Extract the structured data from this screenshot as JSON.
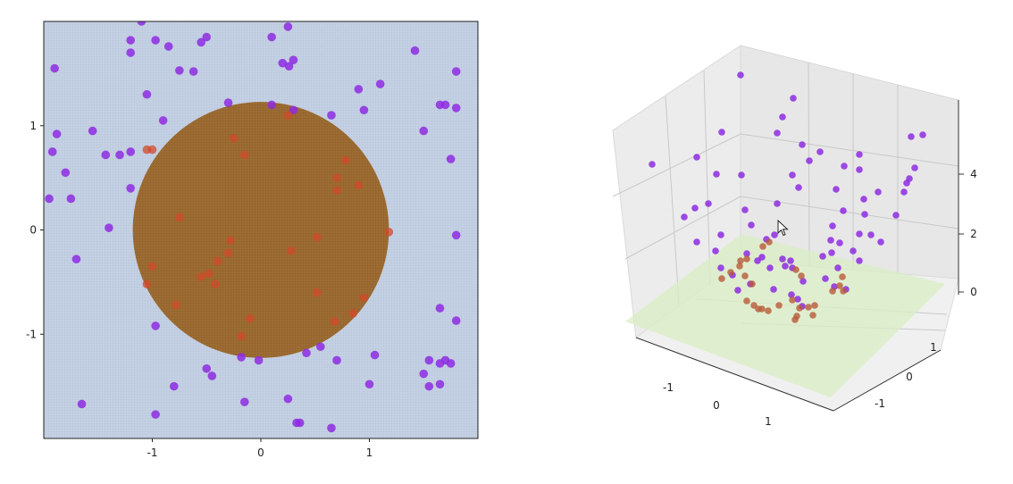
{
  "chart_data": [
    {
      "type": "scatter",
      "title": "",
      "xlabel": "",
      "ylabel": "",
      "xlim": [
        -2,
        2
      ],
      "ylim": [
        -2,
        2
      ],
      "xticks": [
        "-1",
        "0",
        "1"
      ],
      "yticks": [
        "-1",
        "0",
        "1"
      ],
      "xtick_values": [
        -1,
        0,
        1
      ],
      "ytick_values": [
        -1,
        0,
        1
      ],
      "grid": false,
      "decision_region": {
        "shape": "circle",
        "center": [
          0,
          0
        ],
        "radius": 1.18,
        "inside_color": "#9a6a30",
        "outside_color": "#c3cfe2"
      },
      "classes": [
        {
          "color": "#8e2be2",
          "points": [
            [
              -1.1,
              2
            ],
            [
              -1.2,
              1.82
            ],
            [
              -1.2,
              1.7
            ],
            [
              -0.97,
              1.82
            ],
            [
              -0.85,
              1.76
            ],
            [
              -0.75,
              1.53
            ],
            [
              -0.62,
              1.52
            ],
            [
              -0.55,
              1.8
            ],
            [
              -0.5,
              1.85
            ],
            [
              0.1,
              1.85
            ],
            [
              0.25,
              1.95
            ],
            [
              0.2,
              1.6
            ],
            [
              0.26,
              1.57
            ],
            [
              0.3,
              1.63
            ],
            [
              0.1,
              1.2
            ],
            [
              0.65,
              1.1
            ],
            [
              0.9,
              1.35
            ],
            [
              0.95,
              1.15
            ],
            [
              1.1,
              1.4
            ],
            [
              1.42,
              1.72
            ],
            [
              1.5,
              0.95
            ],
            [
              1.65,
              1.2
            ],
            [
              1.7,
              1.2
            ],
            [
              1.8,
              1.52
            ],
            [
              1.8,
              1.17
            ],
            [
              1.75,
              0.68
            ],
            [
              1.8,
              -0.05
            ],
            [
              1.65,
              -0.75
            ],
            [
              1.8,
              -0.87
            ],
            [
              1.7,
              -1.25
            ],
            [
              1.55,
              -1.25
            ],
            [
              1.65,
              -1.28
            ],
            [
              1.75,
              -1.28
            ],
            [
              1.5,
              -1.38
            ],
            [
              1.55,
              -1.5
            ],
            [
              1.65,
              -1.48
            ],
            [
              1.05,
              -1.2
            ],
            [
              1.0,
              -1.48
            ],
            [
              0.7,
              -1.25
            ],
            [
              0.55,
              -1.12
            ],
            [
              0.42,
              -1.18
            ],
            [
              0.25,
              -1.62
            ],
            [
              0.33,
              -1.85
            ],
            [
              0.36,
              -1.85
            ],
            [
              0.65,
              -1.9
            ],
            [
              -0.02,
              -1.25
            ],
            [
              -0.15,
              -1.65
            ],
            [
              -0.18,
              -1.22
            ],
            [
              -0.5,
              -1.33
            ],
            [
              -0.45,
              -1.4
            ],
            [
              -0.8,
              -1.5
            ],
            [
              -0.97,
              -0.92
            ],
            [
              -0.97,
              -1.77
            ],
            [
              -1.65,
              -1.67
            ],
            [
              -1.88,
              0.92
            ],
            [
              -1.95,
              0.3
            ],
            [
              -1.75,
              0.3
            ],
            [
              -1.8,
              0.55
            ],
            [
              -1.92,
              0.75
            ],
            [
              -1.9,
              1.55
            ],
            [
              -1.43,
              0.72
            ],
            [
              -1.55,
              0.95
            ],
            [
              -1.3,
              0.72
            ],
            [
              -1.2,
              0.75
            ],
            [
              -1.2,
              0.4
            ],
            [
              -1.4,
              0.02
            ],
            [
              -1.7,
              -0.28
            ],
            [
              -0.9,
              1.05
            ],
            [
              -1.05,
              1.3
            ],
            [
              -0.3,
              1.22
            ],
            [
              0.3,
              1.15
            ]
          ]
        },
        {
          "color": "#d24a2a",
          "points": [
            [
              -0.25,
              0.88
            ],
            [
              0.25,
              1.1
            ],
            [
              -0.15,
              0.72
            ],
            [
              -1.05,
              0.77
            ],
            [
              -1.0,
              0.77
            ],
            [
              0.78,
              0.67
            ],
            [
              0.7,
              0.5
            ],
            [
              0.9,
              0.43
            ],
            [
              0.7,
              0.38
            ],
            [
              -0.75,
              0.12
            ],
            [
              1.18,
              -0.02
            ],
            [
              0.52,
              -0.07
            ],
            [
              0.28,
              -0.2
            ],
            [
              -0.28,
              -0.1
            ],
            [
              -0.3,
              -0.22
            ],
            [
              -1.0,
              -0.35
            ],
            [
              -1.05,
              -0.52
            ],
            [
              -0.55,
              -0.45
            ],
            [
              -0.48,
              -0.42
            ],
            [
              -0.42,
              -0.52
            ],
            [
              -0.4,
              -0.3
            ],
            [
              0.52,
              -0.6
            ],
            [
              0.95,
              -0.65
            ],
            [
              0.85,
              -0.8
            ],
            [
              0.68,
              -0.88
            ],
            [
              -0.1,
              -0.85
            ],
            [
              -0.78,
              -0.72
            ],
            [
              -0.18,
              -1.02
            ]
          ]
        }
      ]
    },
    {
      "type": "scatter",
      "title": "",
      "xlabel": "",
      "ylabel": "",
      "zlabel": "",
      "projection": "3d",
      "xticks": [
        "-1",
        "0",
        "1"
      ],
      "yticks": [
        "1",
        "0",
        "-1"
      ],
      "zticks": [
        "4",
        "2",
        "0"
      ],
      "grid": true,
      "plane": {
        "color": "#d8ecc8",
        "z": 0
      },
      "classes": [
        {
          "color": "#8e2be2",
          "points_projected": [
            [
              829,
              84
            ],
            [
              888,
              110
            ],
            [
              876,
              131
            ],
            [
              808,
              148
            ],
            [
              730,
              184
            ],
            [
              870,
              149
            ],
            [
              898,
              162
            ],
            [
              918,
              170
            ],
            [
              906,
              180
            ],
            [
              780,
              176
            ],
            [
              802,
              195
            ],
            [
              830,
              196
            ],
            [
              887,
              196
            ],
            [
              894,
              210
            ],
            [
              962,
              173
            ],
            [
              945,
              186
            ],
            [
              962,
              190
            ],
            [
              1020,
              153
            ],
            [
              1033,
              151
            ],
            [
              1024,
              188
            ],
            [
              1018,
              200
            ],
            [
              1015,
              205
            ],
            [
              1012,
              215
            ],
            [
              936,
              212
            ],
            [
              967,
              223
            ],
            [
              983,
              215
            ],
            [
              944,
              236
            ],
            [
              968,
              240
            ],
            [
              1003,
              241
            ],
            [
              766,
              243
            ],
            [
              778,
              233
            ],
            [
              793,
              228
            ],
            [
              834,
              235
            ],
            [
              841,
              252
            ],
            [
              870,
              228
            ],
            [
              867,
              263
            ],
            [
              858,
              268
            ],
            [
              932,
              253
            ],
            [
              930,
              269
            ],
            [
              962,
              262
            ],
            [
              986,
              271
            ],
            [
              975,
              263
            ],
            [
              807,
              263
            ],
            [
              780,
              271
            ],
            [
              801,
              281
            ],
            [
              940,
              272
            ],
            [
              955,
              281
            ],
            [
              962,
              292
            ],
            [
              931,
              283
            ],
            [
              921,
              287
            ],
            [
              938,
              300
            ],
            [
              924,
              312
            ],
            [
              879,
              298
            ],
            [
              887,
              300
            ],
            [
              899,
              315
            ],
            [
              934,
              321
            ],
            [
              947,
              324
            ],
            [
              820,
              308
            ],
            [
              826,
              325
            ],
            [
              840,
              318
            ],
            [
              866,
              324
            ],
            [
              893,
              335
            ],
            [
              898,
              343
            ],
            [
              886,
              330
            ],
            [
              807,
              300
            ],
            [
              836,
              284
            ],
            [
              848,
              292
            ],
            [
              876,
              290
            ],
            [
              853,
              288
            ],
            [
              885,
              292
            ],
            [
              862,
              300
            ]
          ]
        },
        {
          "color": "#b85a3a",
          "points_projected": [
            [
              828,
              298
            ],
            [
              818,
              305
            ],
            [
              808,
              312
            ],
            [
              834,
              309
            ],
            [
              842,
              318
            ],
            [
              836,
              337
            ],
            [
              844,
              342
            ],
            [
              849,
              346
            ],
            [
              860,
              348
            ],
            [
              872,
              342
            ],
            [
              887,
              336
            ],
            [
              892,
              354
            ],
            [
              895,
              345
            ],
            [
              905,
              344
            ],
            [
              910,
              353
            ],
            [
              912,
              342
            ],
            [
              940,
              320
            ],
            [
              943,
              310
            ],
            [
              932,
              326
            ],
            [
              944,
              326
            ],
            [
              891,
              302
            ],
            [
              897,
              309
            ],
            [
              836,
              290
            ],
            [
              829,
              292
            ],
            [
              854,
              276
            ],
            [
              861,
              271
            ],
            [
              853,
              346
            ],
            [
              890,
              358
            ]
          ]
        }
      ]
    }
  ]
}
